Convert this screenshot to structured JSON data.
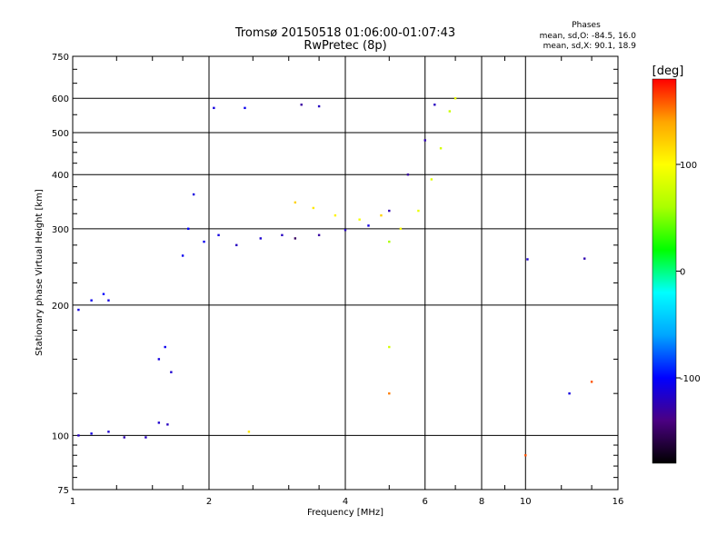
{
  "chart_data": {
    "type": "scatter",
    "title": "Tromsø 20150518 01:06:00-01:07:43",
    "subtitle": "RwPretec (8p)",
    "xlabel": "Frequency [MHz]",
    "ylabel": "Stationary phase Virtual Height [km]",
    "x_scale": "log",
    "y_scale": "log",
    "xlim": [
      1,
      16
    ],
    "ylim": [
      75,
      750
    ],
    "x_ticks": [
      1,
      2,
      4,
      6,
      8,
      10,
      16
    ],
    "y_ticks": [
      75,
      100,
      200,
      300,
      400,
      500,
      600,
      750
    ],
    "grid": true,
    "phases_box": {
      "heading": "Phases",
      "line_o": "mean, sd,O: -84.5, 16.0",
      "line_x": "mean, sd,X:  90.1, 18.9"
    },
    "colorbar": {
      "label": "[deg]",
      "range": [
        -180,
        180
      ],
      "ticks": [
        100,
        0,
        -100
      ],
      "colormap": [
        "#000000",
        "#4b0082",
        "#0000ff",
        "#00a5ff",
        "#00ffff",
        "#00ff00",
        "#aaff00",
        "#ffff00",
        "#ffa500",
        "#ff0000"
      ]
    },
    "series": [
      {
        "values": [
          {
            "x": 1.03,
            "y": 100,
            "c": -120
          },
          {
            "x": 1.1,
            "y": 101,
            "c": -110
          },
          {
            "x": 1.2,
            "y": 102,
            "c": -115
          },
          {
            "x": 1.3,
            "y": 99,
            "c": -125
          },
          {
            "x": 1.45,
            "y": 99,
            "c": -120
          },
          {
            "x": 1.55,
            "y": 107,
            "c": -115
          },
          {
            "x": 1.62,
            "y": 106,
            "c": -120
          },
          {
            "x": 1.03,
            "y": 195,
            "c": -110
          },
          {
            "x": 1.1,
            "y": 205,
            "c": -105
          },
          {
            "x": 1.17,
            "y": 212,
            "c": -100
          },
          {
            "x": 1.55,
            "y": 150,
            "c": -110
          },
          {
            "x": 1.6,
            "y": 160,
            "c": -105
          },
          {
            "x": 1.65,
            "y": 140,
            "c": -115
          },
          {
            "x": 1.75,
            "y": 260,
            "c": -105
          },
          {
            "x": 1.8,
            "y": 300,
            "c": -100
          },
          {
            "x": 1.85,
            "y": 360,
            "c": -110
          },
          {
            "x": 1.95,
            "y": 280,
            "c": -105
          },
          {
            "x": 2.1,
            "y": 290,
            "c": -110
          },
          {
            "x": 2.3,
            "y": 275,
            "c": -120
          },
          {
            "x": 2.6,
            "y": 285,
            "c": -115
          },
          {
            "x": 2.9,
            "y": 290,
            "c": -120
          },
          {
            "x": 2.05,
            "y": 570,
            "c": -110
          },
          {
            "x": 2.4,
            "y": 570,
            "c": -105
          },
          {
            "x": 3.2,
            "y": 580,
            "c": -130
          },
          {
            "x": 3.5,
            "y": 575,
            "c": -120
          },
          {
            "x": 3.1,
            "y": 285,
            "c": -150
          },
          {
            "x": 3.5,
            "y": 290,
            "c": -130
          },
          {
            "x": 4.0,
            "y": 298,
            "c": -120
          },
          {
            "x": 4.5,
            "y": 305,
            "c": -110
          },
          {
            "x": 5.0,
            "y": 330,
            "c": -125
          },
          {
            "x": 5.5,
            "y": 400,
            "c": -130
          },
          {
            "x": 6.0,
            "y": 480,
            "c": -125
          },
          {
            "x": 6.3,
            "y": 580,
            "c": -120
          },
          {
            "x": 1.2,
            "y": 205,
            "c": -110
          },
          {
            "x": 10.1,
            "y": 255,
            "c": -115
          },
          {
            "x": 12.5,
            "y": 125,
            "c": -110
          },
          {
            "x": 13.5,
            "y": 256,
            "c": -125
          }
        ]
      },
      {
        "values": [
          {
            "x": 3.1,
            "y": 345,
            "c": 120
          },
          {
            "x": 3.4,
            "y": 335,
            "c": 110
          },
          {
            "x": 3.8,
            "y": 322,
            "c": 105
          },
          {
            "x": 4.3,
            "y": 315,
            "c": 95
          },
          {
            "x": 4.8,
            "y": 322,
            "c": 120
          },
          {
            "x": 5.3,
            "y": 300,
            "c": 100
          },
          {
            "x": 5.8,
            "y": 330,
            "c": 90
          },
          {
            "x": 6.2,
            "y": 390,
            "c": 85
          },
          {
            "x": 6.5,
            "y": 460,
            "c": 80
          },
          {
            "x": 6.8,
            "y": 560,
            "c": 75
          },
          {
            "x": 7.0,
            "y": 600,
            "c": 90
          },
          {
            "x": 5.0,
            "y": 280,
            "c": 60
          },
          {
            "x": 5.0,
            "y": 160,
            "c": 80
          },
          {
            "x": 5.0,
            "y": 125,
            "c": 150
          },
          {
            "x": 2.45,
            "y": 102,
            "c": 110
          },
          {
            "x": 10.0,
            "y": 90,
            "c": 160
          },
          {
            "x": 14.0,
            "y": 133,
            "c": 160
          }
        ]
      }
    ]
  }
}
